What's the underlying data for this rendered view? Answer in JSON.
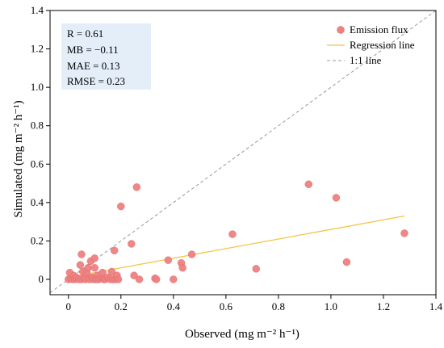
{
  "chart_data": {
    "type": "scatter",
    "xlabel": "Observed (mg m⁻² h⁻¹)",
    "ylabel": "Simulated (mg m⁻² h⁻¹)",
    "xlim": [
      -0.07,
      1.4
    ],
    "ylim": [
      -0.08,
      1.4
    ],
    "xticks": [
      "0",
      "0.2",
      "0.4",
      "0.6",
      "0.8",
      "1.0",
      "1.2",
      "1.4"
    ],
    "yticks": [
      "0",
      "0.2",
      "0.4",
      "0.6",
      "0.8",
      "1.0",
      "1.2",
      "1.4"
    ],
    "grid": false,
    "legend_position": "top-right",
    "stats": [
      "R = 0.61",
      "MB = −0.11",
      "MAE = 0.13",
      "RMSE = 0.23"
    ],
    "colors": {
      "points": "#ef8080",
      "regression": "#f2c545",
      "identity": "#9a9a9a",
      "stats_box": "#e3eef8"
    },
    "series": [
      {
        "name": "Emission flux",
        "points": [
          [
            0.0,
            0.0
          ],
          [
            0.005,
            0.035
          ],
          [
            0.01,
            0.005
          ],
          [
            0.015,
            0.0
          ],
          [
            0.02,
            0.02
          ],
          [
            0.025,
            0.0
          ],
          [
            0.03,
            0.01
          ],
          [
            0.04,
            0.0
          ],
          [
            0.045,
            0.075
          ],
          [
            0.05,
            0.13
          ],
          [
            0.05,
            0.0
          ],
          [
            0.055,
            0.04
          ],
          [
            0.06,
            0.01
          ],
          [
            0.065,
            0.0
          ],
          [
            0.07,
            0.035
          ],
          [
            0.075,
            0.06
          ],
          [
            0.08,
            0.0
          ],
          [
            0.085,
            0.095
          ],
          [
            0.09,
            0.01
          ],
          [
            0.095,
            0.0
          ],
          [
            0.1,
            0.06
          ],
          [
            0.1,
            0.11
          ],
          [
            0.105,
            0.0
          ],
          [
            0.11,
            0.02
          ],
          [
            0.115,
            0.0
          ],
          [
            0.125,
            0.005
          ],
          [
            0.13,
            0.035
          ],
          [
            0.135,
            0.0
          ],
          [
            0.14,
            0.0
          ],
          [
            0.15,
            0.01
          ],
          [
            0.16,
            0.0
          ],
          [
            0.165,
            0.04
          ],
          [
            0.17,
            0.0
          ],
          [
            0.175,
            0.15
          ],
          [
            0.18,
            0.0
          ],
          [
            0.185,
            0.02
          ],
          [
            0.19,
            0.0
          ],
          [
            0.2,
            0.38
          ],
          [
            0.24,
            0.185
          ],
          [
            0.25,
            0.02
          ],
          [
            0.26,
            0.48
          ],
          [
            0.27,
            0.0
          ],
          [
            0.33,
            0.005
          ],
          [
            0.335,
            0.0
          ],
          [
            0.38,
            0.1
          ],
          [
            0.4,
            0.0
          ],
          [
            0.43,
            0.085
          ],
          [
            0.435,
            0.06
          ],
          [
            0.47,
            0.13
          ],
          [
            0.625,
            0.235
          ],
          [
            0.715,
            0.055
          ],
          [
            0.915,
            0.495
          ],
          [
            1.02,
            0.425
          ],
          [
            1.06,
            0.09
          ],
          [
            1.28,
            0.24
          ]
        ]
      },
      {
        "name": "Regression line",
        "line": [
          [
            0.0,
            0.01
          ],
          [
            1.28,
            0.33
          ]
        ]
      },
      {
        "name": "1:1 line",
        "line": [
          [
            -0.07,
            -0.07
          ],
          [
            1.4,
            1.4
          ]
        ]
      }
    ]
  }
}
